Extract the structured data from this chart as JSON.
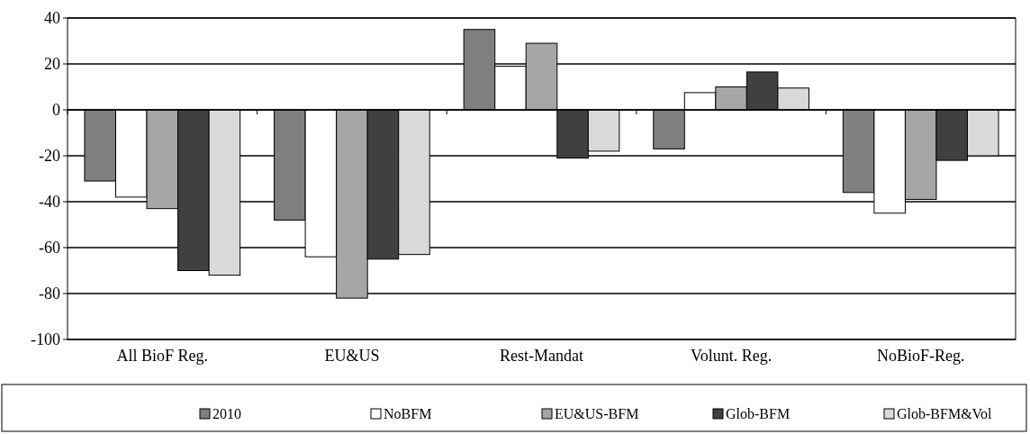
{
  "chart_data": {
    "type": "bar",
    "categories": [
      "All BioF Reg.",
      "EU&US",
      "Rest-Mandat",
      "Volunt. Reg.",
      "NoBioF-Reg."
    ],
    "series": [
      {
        "name": "2010",
        "color": "#7f7f7f",
        "values": [
          -31,
          -48,
          35,
          -17,
          -36
        ]
      },
      {
        "name": "NoBFM",
        "color": "#ffffff",
        "values": [
          -38,
          -64,
          19,
          7.5,
          -45
        ]
      },
      {
        "name": "EU&US-BFM",
        "color": "#a6a6a6",
        "values": [
          -43,
          -82,
          29,
          10,
          -39
        ]
      },
      {
        "name": "Glob-BFM",
        "color": "#404040",
        "values": [
          -70,
          -65,
          -21,
          16.5,
          -22
        ]
      },
      {
        "name": "Glob-BFM&Vol",
        "color": "#d9d9d9",
        "values": [
          -72,
          -63,
          -18,
          9.5,
          -20
        ]
      }
    ],
    "ylim": [
      -100,
      40
    ],
    "yticks": [
      -100,
      -80,
      -60,
      -40,
      -20,
      0,
      20,
      40
    ],
    "grid": "y",
    "legend": "bottom"
  }
}
